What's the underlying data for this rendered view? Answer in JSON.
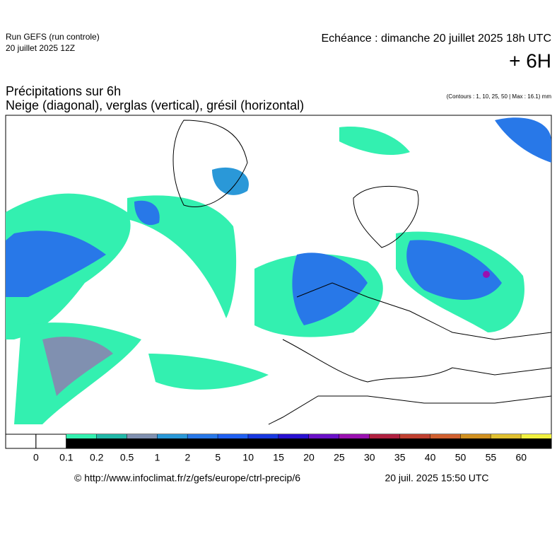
{
  "header": {
    "run": "Run GEFS (run controle)",
    "run_date": "20 juillet 2025 12Z",
    "echeance": "Echéance : dimanche 20 juillet 2025 18h UTC",
    "lead": "+ 6H",
    "title": "Précipitations sur 6h",
    "subtitle": "Neige (diagonal), verglas (vertical), grésil (horizontal)",
    "contours": "(Contours : 1, 10, 25, 50 | Max : 16.1) mm"
  },
  "legend": {
    "levels": [
      0,
      0.1,
      0.2,
      0.5,
      1,
      2,
      5,
      10,
      15,
      20,
      25,
      30,
      35,
      40,
      50,
      55,
      60
    ],
    "colors": [
      "#ffffff",
      "#ffffff",
      "#33f0b0",
      "#22b8a8",
      "#8090b0",
      "#2a98d8",
      "#2878e8",
      "#2060f0",
      "#1838e0",
      "#2810d0",
      "#6a10c8",
      "#9a10b0",
      "#b02040",
      "#c04030",
      "#d06030",
      "#d09020",
      "#e0c030",
      "#f0f040"
    ]
  },
  "footer": {
    "url": "© http://www.infoclimat.fr/z/gefs/europe/ctrl-precip/6",
    "timestamp": "20 juil. 2025 15:50 UTC"
  }
}
